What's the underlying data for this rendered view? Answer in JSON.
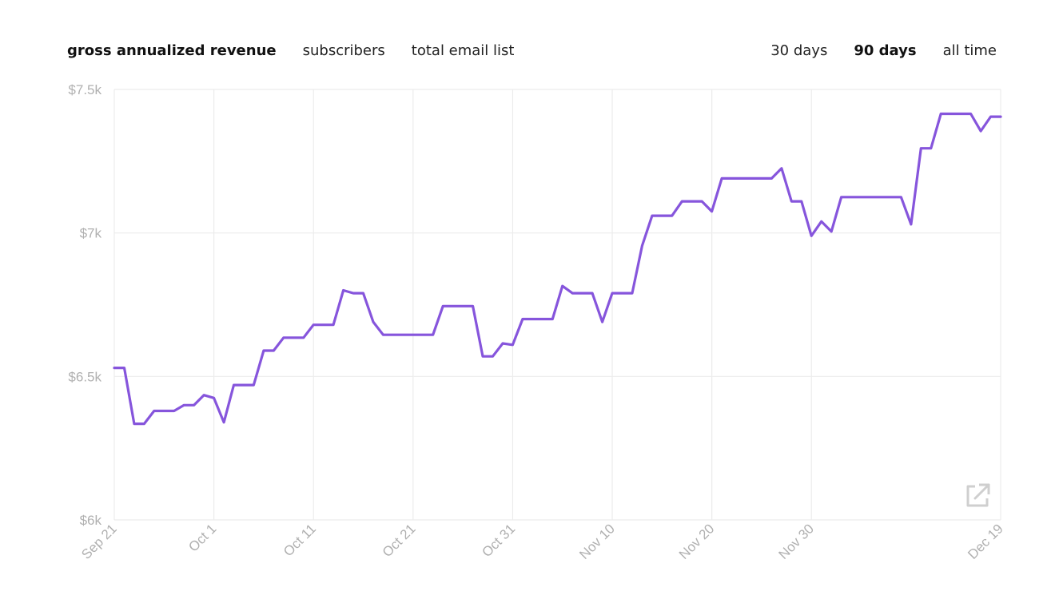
{
  "tabs": {
    "metrics": [
      {
        "label": "gross annualized revenue",
        "active": true
      },
      {
        "label": "subscribers",
        "active": false
      },
      {
        "label": "total email list",
        "active": false
      }
    ],
    "ranges": [
      {
        "label": "30 days",
        "active": false
      },
      {
        "label": "90 days",
        "active": true
      },
      {
        "label": "all time",
        "active": false
      }
    ]
  },
  "icons": {
    "open_external": "external-link-icon"
  },
  "colors": {
    "line": "#8655dc",
    "grid": "#ececec",
    "tick_label": "#b0b0b0"
  },
  "chart_data": {
    "type": "line",
    "title": "",
    "xlabel": "",
    "ylabel": "",
    "x_axis_type": "date",
    "xlim": [
      "2022-09-21",
      "2022-12-19"
    ],
    "ylim": [
      6000,
      7500
    ],
    "yticks": [
      6000,
      6500,
      7000,
      7500
    ],
    "ytick_labels": [
      "$6k",
      "$6.5k",
      "$7k",
      "$7.5k"
    ],
    "xticks": [
      "2022-09-21",
      "2022-10-01",
      "2022-10-11",
      "2022-10-21",
      "2022-10-31",
      "2022-11-10",
      "2022-11-20",
      "2022-11-30",
      "2022-12-19"
    ],
    "xtick_labels": [
      "Sep 21",
      "Oct 1",
      "Oct 11",
      "Oct 21",
      "Oct 31",
      "Nov 10",
      "Nov 20",
      "Nov 30",
      "Dec 19"
    ],
    "grid": true,
    "legend": "none",
    "series": [
      {
        "x": [
          "2022-09-21",
          "2022-09-22",
          "2022-09-23",
          "2022-09-24",
          "2022-09-25",
          "2022-09-26",
          "2022-09-27",
          "2022-09-28",
          "2022-09-29",
          "2022-09-30",
          "2022-10-01",
          "2022-10-02",
          "2022-10-03",
          "2022-10-04",
          "2022-10-05",
          "2022-10-06",
          "2022-10-07",
          "2022-10-08",
          "2022-10-09",
          "2022-10-10",
          "2022-10-11",
          "2022-10-12",
          "2022-10-13",
          "2022-10-14",
          "2022-10-15",
          "2022-10-16",
          "2022-10-17",
          "2022-10-18",
          "2022-10-19",
          "2022-10-20",
          "2022-10-21",
          "2022-10-22",
          "2022-10-23",
          "2022-10-24",
          "2022-10-25",
          "2022-10-26",
          "2022-10-27",
          "2022-10-28",
          "2022-10-29",
          "2022-10-30",
          "2022-10-31",
          "2022-11-01",
          "2022-11-02",
          "2022-11-03",
          "2022-11-04",
          "2022-11-05",
          "2022-11-06",
          "2022-11-07",
          "2022-11-08",
          "2022-11-09",
          "2022-11-10",
          "2022-11-11",
          "2022-11-12",
          "2022-11-13",
          "2022-11-14",
          "2022-11-15",
          "2022-11-16",
          "2022-11-17",
          "2022-11-18",
          "2022-11-19",
          "2022-11-20",
          "2022-11-21",
          "2022-11-22",
          "2022-11-23",
          "2022-11-24",
          "2022-11-25",
          "2022-11-26",
          "2022-11-27",
          "2022-11-28",
          "2022-11-29",
          "2022-11-30",
          "2022-12-01",
          "2022-12-02",
          "2022-12-03",
          "2022-12-04",
          "2022-12-05",
          "2022-12-06",
          "2022-12-07",
          "2022-12-08",
          "2022-12-09",
          "2022-12-10",
          "2022-12-11",
          "2022-12-12",
          "2022-12-13",
          "2022-12-14",
          "2022-12-15",
          "2022-12-16",
          "2022-12-17",
          "2022-12-18",
          "2022-12-19"
        ],
        "values": [
          6530,
          6530,
          6335,
          6335,
          6380,
          6380,
          6380,
          6400,
          6400,
          6435,
          6425,
          6340,
          6470,
          6470,
          6470,
          6590,
          6590,
          6635,
          6635,
          6635,
          6680,
          6680,
          6680,
          6800,
          6790,
          6790,
          6690,
          6645,
          6645,
          6645,
          6645,
          6645,
          6645,
          6745,
          6745,
          6745,
          6745,
          6570,
          6570,
          6615,
          6610,
          6700,
          6700,
          6700,
          6700,
          6815,
          6790,
          6790,
          6790,
          6690,
          6790,
          6790,
          6790,
          6955,
          7060,
          7060,
          7060,
          7110,
          7110,
          7110,
          7075,
          7190,
          7190,
          7190,
          7190,
          7190,
          7190,
          7225,
          7110,
          7110,
          6990,
          7040,
          7005,
          7125,
          7125,
          7125,
          7125,
          7125,
          7125,
          7125,
          7030,
          7295,
          7295,
          7415,
          7415,
          7415,
          7415,
          7355,
          7405,
          7405
        ]
      }
    ]
  }
}
